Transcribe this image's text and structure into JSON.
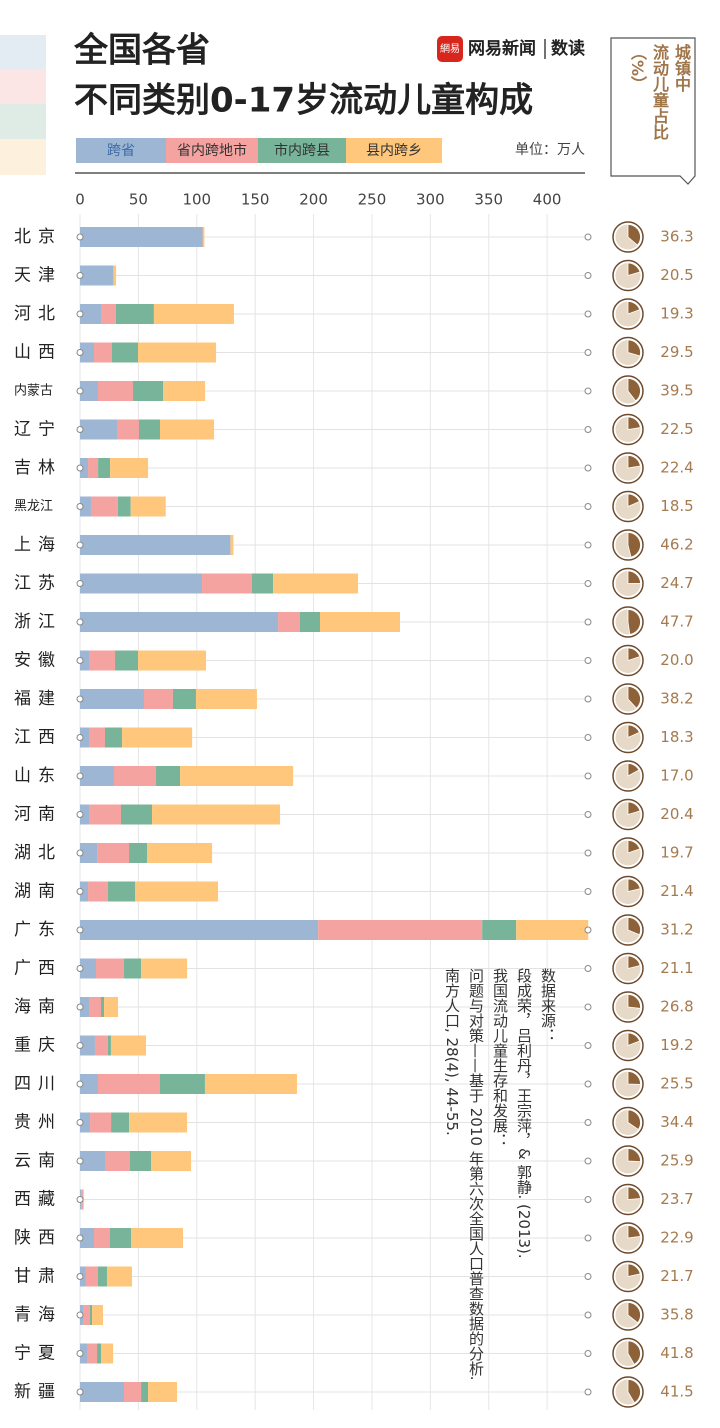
{
  "chart_data": {
    "type": "bar",
    "orientation": "horizontal",
    "stacked": true,
    "title": [
      "全国各省",
      "不同类别0-17岁流动儿童构成"
    ],
    "logo": "網易",
    "brand": "网易新闻",
    "brand_section": "数读",
    "unit": "单位：万人",
    "categories": [
      "北京",
      "天津",
      "河北",
      "山西",
      "内蒙古",
      "辽宁",
      "吉林",
      "黑龙江",
      "上海",
      "江苏",
      "浙江",
      "安徽",
      "福建",
      "江西",
      "山东",
      "河南",
      "湖北",
      "湖南",
      "广东",
      "广西",
      "海南",
      "重庆",
      "四川",
      "贵州",
      "云南",
      "西藏",
      "陕西",
      "甘肃",
      "青海",
      "宁夏",
      "新疆"
    ],
    "series": [
      {
        "name": "跨省",
        "color": "#9db6d3",
        "values": [
          104.5,
          28.3,
          18.0,
          12.0,
          15.4,
          31.7,
          6.9,
          9.4,
          128.5,
          104.5,
          169.6,
          7.7,
          54.8,
          7.7,
          29.1,
          7.7,
          14.6,
          6.9,
          203.9,
          13.7,
          7.7,
          12.8,
          15.4,
          8.6,
          21.4,
          1.5,
          12.0,
          5.1,
          2.6,
          6.0,
          37.7
        ]
      },
      {
        "name": "省内跨地市",
        "color": "#f4a3a0",
        "values": [
          0.5,
          0.3,
          12.8,
          15.4,
          30.0,
          18.8,
          8.6,
          23.0,
          0.3,
          42.8,
          18.8,
          22.3,
          24.8,
          13.7,
          36.0,
          27.4,
          27.4,
          17.1,
          140.5,
          24.0,
          10.3,
          11.1,
          53.1,
          18.0,
          21.4,
          1.0,
          13.7,
          10.3,
          6.0,
          8.6,
          14.6
        ]
      },
      {
        "name": "市内跨县",
        "color": "#77b499",
        "values": [
          0.3,
          0.3,
          32.5,
          22.3,
          25.7,
          18.0,
          10.3,
          11.0,
          0.3,
          18.0,
          17.1,
          19.7,
          19.7,
          14.6,
          20.6,
          26.6,
          15.4,
          23.1,
          29.1,
          14.6,
          2.6,
          2.6,
          38.5,
          15.4,
          18.0,
          0.3,
          18.0,
          7.7,
          1.7,
          3.4,
          6.0
        ]
      },
      {
        "name": "县内跨乡",
        "color": "#fec77b",
        "values": [
          1.2,
          2.0,
          68.5,
          66.8,
          36.0,
          46.3,
          32.5,
          30.0,
          2.3,
          72.8,
          68.5,
          58.2,
          52.2,
          60.0,
          96.8,
          109.6,
          55.7,
          71.1,
          61.7,
          39.4,
          12.0,
          30.0,
          78.8,
          49.7,
          34.3,
          0.5,
          44.5,
          21.4,
          9.4,
          10.3,
          24.8
        ]
      }
    ],
    "xlim": [
      0,
      435
    ],
    "xticks": [
      0,
      50,
      100,
      150,
      200,
      250,
      300,
      350,
      400
    ],
    "grid": true,
    "share": {
      "title": [
        "城镇中",
        "流动儿童占比",
        "（%）"
      ],
      "color": "#8e6239",
      "values": [
        36.3,
        20.5,
        19.3,
        29.5,
        39.5,
        22.5,
        22.4,
        18.5,
        46.2,
        24.7,
        47.7,
        20.0,
        38.2,
        18.3,
        17.0,
        20.4,
        19.7,
        21.4,
        31.2,
        21.1,
        26.8,
        19.2,
        25.5,
        34.4,
        25.9,
        23.7,
        22.9,
        21.7,
        35.8,
        41.8,
        41.5
      ],
      "value_labels": [
        "36.3",
        "20.5",
        "19.3",
        "29.5",
        "39.5",
        "22.5",
        "22.4",
        "18.5",
        "46.2",
        "24.7",
        "47.7",
        "20.0",
        "38.2",
        "18.3",
        "17.0",
        "20.4",
        "19.7",
        "21.4",
        "31.2",
        "21.1",
        "26.8",
        "19.2",
        "25.5",
        "34.4",
        "25.9",
        "23.7",
        "22.9",
        "21.7",
        "35.8",
        "41.8",
        "41.5"
      ]
    },
    "source": [
      "数据来源：",
      "段成荣，吕利丹，王宗萍，& 郭静. (2013).",
      "我国流动儿童生存和发展：",
      "问题与对策——基于 2010 年第六次全国人口普查数据的分析.",
      "南方人口, 28(4), 44-55."
    ]
  }
}
